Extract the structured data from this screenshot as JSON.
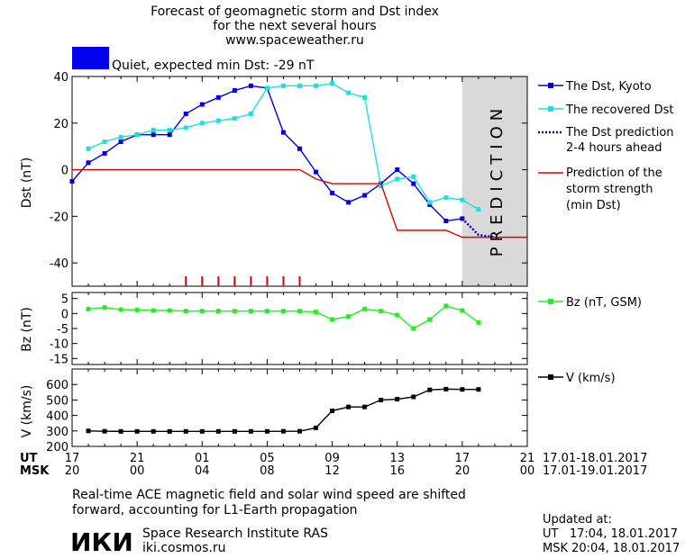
{
  "header": {
    "title_line1": "Forecast of geomagnetic storm and Dst index",
    "title_line2": "for the next several hours",
    "url": "www.spaceweather.ru",
    "status_color": "#0000ee",
    "status_text": "Quiet, expected min Dst: -29 nT"
  },
  "prediction_label": "PREDICTION",
  "legend": {
    "dst_kyoto": "The Dst, Kyoto",
    "recovered": "The recovered Dst",
    "pred_l1": "The Dst prediction",
    "pred_l2": "2-4 hours ahead",
    "storm_l1": "Prediction of the",
    "storm_l2": "storm strength",
    "storm_l3": "(min Dst)",
    "bz": "Bz (nT, GSM)",
    "v": "V (km/s)"
  },
  "xaxis": {
    "ut_label": "UT",
    "msk_label": "MSK",
    "ut_ticks": [
      "17",
      "21",
      "01",
      "05",
      "09",
      "13",
      "17",
      "21"
    ],
    "msk_ticks": [
      "20",
      "00",
      "04",
      "08",
      "12",
      "16",
      "20",
      "00"
    ],
    "ut_range": "17.01-18.01.2017",
    "msk_range": "17.01-19.01.2017"
  },
  "footer": {
    "note_l1": "Real-time ACE magnetic field and solar wind speed are shifted",
    "note_l2": "forward, accounting for L1-Earth propagation",
    "logo_text": "ИКИ",
    "institute": "Space Research Institute RAS",
    "site": "iki.cosmos.ru",
    "updated_label": "Updated at:",
    "updated_ut": "UT   17:04, 18.01.2017",
    "updated_msk": "MSK 20:04, 18.01.2017"
  },
  "chart_data": [
    {
      "type": "line",
      "ylabel": "Dst (nT)",
      "xlim": [
        0,
        28
      ],
      "ylim": [
        -50,
        40
      ],
      "yticks": [
        40,
        20,
        0,
        -20,
        -40
      ],
      "prediction_start": 24,
      "series": [
        {
          "name": "The Dst, Kyoto",
          "color": "#0000dd",
          "x": [
            0,
            1,
            2,
            3,
            4,
            5,
            6,
            7,
            8,
            9,
            10,
            11,
            12,
            13,
            14,
            15,
            16,
            17,
            18,
            19,
            20,
            21,
            22,
            23,
            24
          ],
          "values": [
            -5,
            3,
            7,
            12,
            15,
            15,
            15,
            24,
            28,
            31,
            34,
            36,
            35,
            16,
            9,
            -1,
            -10,
            -14,
            -11,
            -6,
            0,
            -6,
            -15,
            -22,
            -21
          ]
        },
        {
          "name": "The recovered Dst",
          "color": "#22dddd",
          "x": [
            1,
            2,
            3,
            4,
            5,
            6,
            7,
            8,
            9,
            10,
            11,
            12,
            13,
            14,
            15,
            16,
            17,
            18,
            19,
            20,
            21,
            22,
            23,
            24,
            25
          ],
          "values": [
            9,
            12,
            14,
            15,
            17,
            17,
            18,
            20,
            21,
            22,
            24,
            35,
            36,
            36,
            36,
            37,
            33,
            31,
            -7,
            -4,
            -3,
            -14,
            -12,
            -13,
            -17
          ]
        },
        {
          "name": "The Dst prediction",
          "color": "#0000dd",
          "x": [
            24,
            25,
            26
          ],
          "values": [
            -21,
            -28,
            -29
          ]
        },
        {
          "name": "Prediction of the storm strength",
          "color": "#dd0000",
          "x": [
            0,
            13,
            14,
            15,
            16,
            17,
            18,
            19,
            20,
            21,
            22,
            23,
            24,
            28
          ],
          "values": [
            0,
            0,
            0,
            -4,
            -6,
            -6,
            -6,
            -6,
            -26,
            -26,
            -26,
            -26,
            -29,
            -29
          ]
        }
      ],
      "storm_ticks_x": [
        7,
        8,
        9,
        10,
        11,
        12,
        13,
        14
      ]
    },
    {
      "type": "line",
      "ylabel": "Bz (nT)",
      "xlim": [
        0,
        28
      ],
      "ylim": [
        -17,
        7
      ],
      "yticks": [
        5,
        0,
        -5,
        -10,
        -15
      ],
      "series": [
        {
          "name": "Bz (nT, GSM)",
          "color": "#22ee22",
          "x": [
            1,
            2,
            3,
            4,
            5,
            6,
            7,
            8,
            9,
            10,
            11,
            12,
            13,
            14,
            15,
            16,
            17,
            18,
            19,
            20,
            21,
            22,
            23,
            24,
            25
          ],
          "values": [
            1.5,
            2,
            1.3,
            1.2,
            1,
            1,
            0.8,
            0.8,
            0.8,
            0.8,
            0.8,
            0.8,
            0.8,
            0.8,
            0.5,
            -2,
            -1,
            1.5,
            0.8,
            -0.5,
            -5,
            -2,
            2.5,
            1,
            -3
          ]
        }
      ]
    },
    {
      "type": "line",
      "ylabel": "V (km/s)",
      "xlim": [
        0,
        28
      ],
      "ylim": [
        200,
        700
      ],
      "yticks": [
        600,
        500,
        400,
        300,
        200
      ],
      "series": [
        {
          "name": "V (km/s)",
          "color": "#000000",
          "x": [
            1,
            2,
            3,
            4,
            5,
            6,
            7,
            8,
            9,
            10,
            11,
            12,
            13,
            14,
            15,
            16,
            17,
            18,
            19,
            20,
            21,
            22,
            23,
            24,
            25
          ],
          "values": [
            300,
            298,
            297,
            297,
            297,
            297,
            297,
            297,
            297,
            297,
            297,
            297,
            298,
            298,
            320,
            430,
            455,
            455,
            500,
            505,
            520,
            565,
            570,
            568,
            568
          ]
        }
      ]
    }
  ]
}
